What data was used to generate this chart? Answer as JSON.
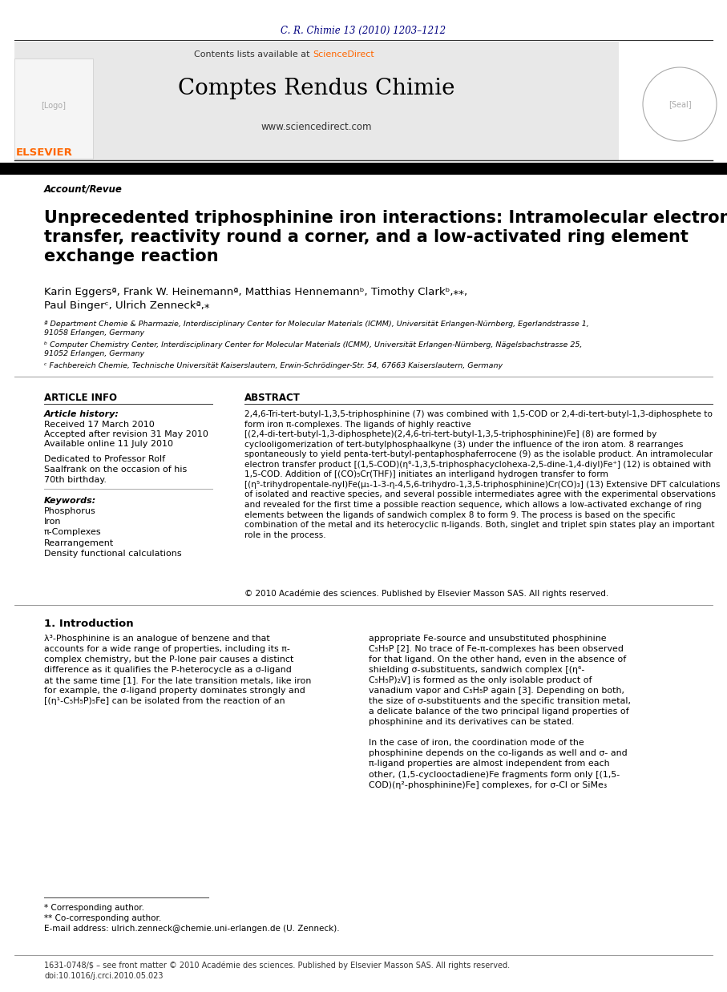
{
  "journal_ref": "C. R. Chimie 13 (2010) 1203–1212",
  "journal_ref_color": "#000080",
  "header_bg": "#e8e8e8",
  "contents_text": "Contents lists available at ",
  "sciencedirect_text": "ScienceDirect",
  "sciencedirect_color": "#ff6600",
  "journal_name": "Comptes Rendus Chimie",
  "website": "www.sciencedirect.com",
  "section_label": "Account/Revue",
  "title": "Unprecedented triphosphinine iron interactions: Intramolecular electron\ntransfer, reactivity round a corner, and a low-activated ring element\nexchange reaction",
  "authors": "Karin Eggersª, Frank W. Heinemannª, Matthias Hennemannᵇ, Timothy Clarkᵇ,⁎⁎,\nPaul Bingerᶜ, Ulrich Zenneckª,⁎",
  "affil_a": "ª Department Chemie & Pharmazie, Interdisciplinary Center for Molecular Materials (ICMM), Universität Erlangen-Nürnberg, Egerlandstrasse 1,\n91058 Erlangen, Germany",
  "affil_b": "ᵇ Computer Chemistry Center, Interdisciplinary Center for Molecular Materials (ICMM), Universität Erlangen-Nürnberg, Nägelsbachstrasse 25,\n91052 Erlangen, Germany",
  "affil_c": "ᶜ Fachbereich Chemie, Technische Universität Kaiserslautern, Erwin-Schrödinger-Str. 54, 67663 Kaiserslautern, Germany",
  "article_info_title": "ARTICLE INFO",
  "abstract_title": "ABSTRACT",
  "article_history": "Article history:",
  "received": "Received 17 March 2010",
  "accepted": "Accepted after revision 31 May 2010",
  "available": "Available online 11 July 2010",
  "dedicated": "Dedicated to Professor Rolf\nSaalfrank on the occasion of his\n70th birthday.",
  "keywords_title": "Keywords:",
  "keywords": "Phosphorus\nIron\nπ-Complexes\nRearrangement\nDensity functional calculations",
  "abstract_text": "2,4,6-Tri-tert-butyl-1,3,5-triphosphinine (7) was combined with 1,5-COD or 2,4-di-tert-butyl-1,3-diphosphete to form iron π-complexes. The ligands of highly reactive [(2,4-di-tert-butyl-1,3-diphosphete)(2,4,6-tri-tert-butyl-1,3,5-triphosphinine)Fe] (8) are formed by cyclooligomerization of tert-butylphosphaalkyne (3) under the influence of the iron atom. 8 rearranges spontaneously to yield penta-tert-butyl-pentaphosphaferrocene (9) as the isolable product. An intramolecular electron transfer product [(1,5-COD)(η⁶-1,3,5-triphosphacyclohexa-2,5-dine-1,4-diyl)Fe⁺] (12) is obtained with 1,5-COD. Addition of [(CO)₅Cr(THF)] initiates an interligand hydrogen transfer to form [(η⁵-trihydropentale-nyl)Fe(μ₁-1-3-η-4,5,6-trihydro-1,3,5-triphosphinine)Cr(CO)₃] (13) Extensive DFT calculations of isolated and reactive species, and several possible intermediates agree with the experimental observations and revealed for the first time a possible reaction sequence, which allows a low-activated exchange of ring elements between the ligands of sandwich complex 8 to form 9. The process is based on the specific combination of the metal and its heterocyclic π-ligands. Both, singlet and triplet spin states play an important role in the process.",
  "copyright": "© 2010 Académie des sciences. Published by Elsevier Masson SAS. All rights reserved.",
  "intro_title": "1. Introduction",
  "intro_col1": "λ³-Phosphinine is an analogue of benzene and that\naccounts for a wide range of properties, including its π-\ncomplex chemistry, but the P-lone pair causes a distinct\ndifference as it qualifies the P-heterocycle as a σ-ligand\nat the same time [1]. For the late transition metals, like iron\nfor example, the σ-ligand property dominates strongly and\n[(η¹-C₅H₅P)₅Fe] can be isolated from the reaction of an",
  "intro_col2": "appropriate Fe-source and unsubstituted phosphinine\nC₅H₅P [2]. No trace of Fe-π-complexes has been observed\nfor that ligand. On the other hand, even in the absence of\nshielding σ-substituents, sandwich complex [(η⁶-\nC₅H₅P)₂V] is formed as the only isolable product of\nvanadium vapor and C₅H₅P again [3]. Depending on both,\nthe size of σ-substituents and the specific transition metal,\na delicate balance of the two principal ligand properties of\nphosphinine and its derivatives can be stated.\n\nIn the case of iron, the coordination mode of the\nphosphinine depends on the co-ligands as well and σ- and\nπ-ligand properties are almost independent from each\nother, (1,5-cyclooctadiene)Fe fragments form only [(1,5-\nCOD)(η²-phosphinine)Fe] complexes, for σ-Cl or SiMe₃",
  "footnote_corresponding": "* Corresponding author.",
  "footnote_co_corresponding": "** Co-corresponding author.",
  "footnote_email": "E-mail address: ulrich.zenneck@chemie.uni-erlangen.de (U. Zenneck).",
  "footer_issn": "1631-0748/$ – see front matter © 2010 Académie des sciences. Published by Elsevier Masson SAS. All rights reserved.",
  "footer_doi": "doi:10.1016/j.crci.2010.05.023",
  "black": "#000000",
  "dark_gray": "#333333",
  "light_gray": "#d0d0d0",
  "bg_white": "#ffffff",
  "orange": "#ff6600"
}
